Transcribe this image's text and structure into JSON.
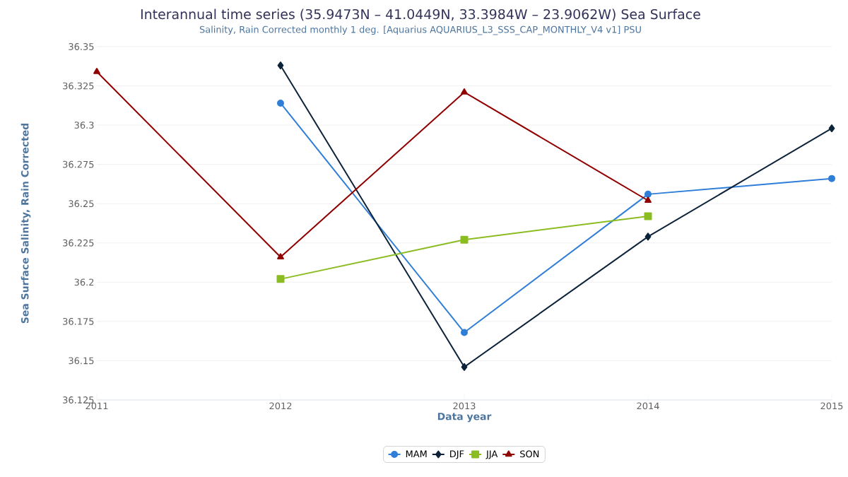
{
  "chart_data": {
    "type": "line",
    "title": "Interannual time series (35.9473N – 41.0449N, 33.3984W – 23.9062W) Sea Surface",
    "subtitle": "Salinity, Rain Corrected monthly 1 deg. [Aquarius AQUARIUS_L3_SSS_CAP_MONTHLY_V4 v1] PSU",
    "xlabel": "Data year",
    "ylabel": "Sea Surface Salinity, Rain Corrected",
    "xlim": [
      2011,
      2015
    ],
    "xticks": [
      2011,
      2012,
      2013,
      2014,
      2015
    ],
    "ylim": [
      36.125,
      36.35
    ],
    "yticks": [
      36.125,
      36.15,
      36.175,
      36.2,
      36.225,
      36.25,
      36.275,
      36.3,
      36.325,
      36.35
    ],
    "grid": "y",
    "legend": "bottom",
    "line_style": "solid",
    "series": [
      {
        "name": "MAM",
        "color": "#2f7ed8",
        "marker": "circle",
        "x": [
          2012,
          2013,
          2014,
          2015
        ],
        "values": [
          36.314,
          36.168,
          36.256,
          36.266
        ]
      },
      {
        "name": "DJF",
        "color": "#0d233a",
        "marker": "diamond",
        "x": [
          2012,
          2013,
          2014,
          2015
        ],
        "values": [
          36.338,
          36.146,
          36.229,
          36.298
        ]
      },
      {
        "name": "JJA",
        "color": "#8bbc21",
        "marker": "square",
        "x": [
          2012,
          2013,
          2014
        ],
        "values": [
          36.202,
          36.227,
          36.242
        ]
      },
      {
        "name": "SON",
        "color": "#910000",
        "marker": "triangle",
        "x": [
          2011,
          2012,
          2013,
          2014
        ],
        "values": [
          36.334,
          36.216,
          36.321,
          36.252
        ]
      }
    ]
  }
}
